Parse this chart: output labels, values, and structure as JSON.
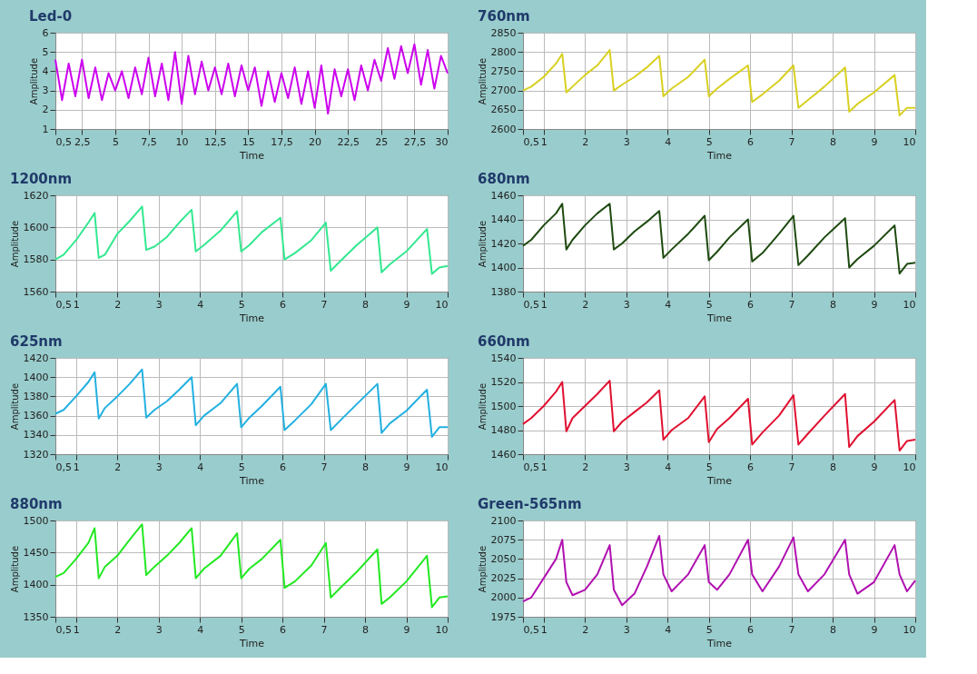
{
  "chart_data": [
    {
      "type": "line",
      "title": "Led-0",
      "xlabel": "Time",
      "ylabel": "Amplitude",
      "grid": true,
      "xlim": [
        0.5,
        30
      ],
      "ylim": [
        1,
        6
      ],
      "yticks": [
        1,
        2,
        3,
        4,
        5,
        6
      ],
      "xticks": [
        {
          "value": 0.5,
          "label": "0,5"
        },
        {
          "value": 2.5,
          "label": "2,5"
        },
        5,
        {
          "value": 7.5,
          "label": "7,5"
        },
        10,
        {
          "value": 12.5,
          "label": "12,5"
        },
        15,
        {
          "value": 17.5,
          "label": "17,5"
        },
        20,
        {
          "value": 22.5,
          "label": "22,5"
        },
        25,
        {
          "value": 27.5,
          "label": "27,5"
        },
        30
      ],
      "x": [
        0.5,
        1,
        1.5,
        2,
        2.5,
        3,
        3.5,
        4,
        4.5,
        5,
        5.5,
        6,
        6.5,
        7,
        7.5,
        8,
        8.5,
        9,
        9.5,
        10,
        10.5,
        11,
        11.5,
        12,
        12.5,
        13,
        13.5,
        14,
        14.5,
        15,
        15.5,
        16,
        16.5,
        17,
        17.5,
        18,
        18.5,
        19,
        19.5,
        20,
        20.5,
        21,
        21.5,
        22,
        22.5,
        23,
        23.5,
        24,
        24.5,
        25,
        25.5,
        26,
        26.5,
        27,
        27.5,
        28,
        28.5,
        29,
        29.5,
        30
      ],
      "series": [
        {
          "color": "#cc00ee",
          "values": [
            4.6,
            2.5,
            4.4,
            2.7,
            4.6,
            2.6,
            4.2,
            2.5,
            3.9,
            3.0,
            4.0,
            2.6,
            4.2,
            2.8,
            4.7,
            2.7,
            4.4,
            2.5,
            5.0,
            2.3,
            4.8,
            2.8,
            4.5,
            3.0,
            4.2,
            2.8,
            4.4,
            2.7,
            4.3,
            3.0,
            4.2,
            2.2,
            4.0,
            2.4,
            3.9,
            2.6,
            4.2,
            2.3,
            4.0,
            2.1,
            4.3,
            1.8,
            4.1,
            2.7,
            4.1,
            2.5,
            4.3,
            3.0,
            4.6,
            3.5,
            5.2,
            3.6,
            5.3,
            3.9,
            5.4,
            3.3,
            5.1,
            3.1,
            4.8,
            3.9
          ]
        }
      ]
    },
    {
      "type": "line",
      "title": "760nm",
      "xlabel": "Time",
      "ylabel": "Amplitude",
      "grid": true,
      "xlim": [
        0.5,
        10
      ],
      "ylim": [
        2600,
        2850
      ],
      "yticks": [
        2600,
        2650,
        2700,
        2750,
        2800,
        2850
      ],
      "xticks": [
        {
          "value": 0.5,
          "label": "0,5"
        },
        1,
        2,
        3,
        4,
        5,
        6,
        7,
        8,
        9,
        10
      ],
      "x": [
        0.5,
        0.7,
        1.0,
        1.3,
        1.45,
        1.55,
        1.7,
        2.0,
        2.3,
        2.6,
        2.7,
        2.9,
        3.2,
        3.5,
        3.8,
        3.9,
        4.1,
        4.5,
        4.9,
        5.0,
        5.2,
        5.5,
        5.95,
        6.05,
        6.3,
        6.7,
        7.05,
        7.17,
        7.4,
        7.8,
        8.3,
        8.4,
        8.6,
        9.0,
        9.5,
        9.62,
        9.8,
        10.0
      ],
      "series": [
        {
          "color": "#d8d020",
          "values": [
            2700,
            2710,
            2735,
            2770,
            2795,
            2695,
            2710,
            2740,
            2765,
            2805,
            2700,
            2715,
            2735,
            2760,
            2790,
            2685,
            2705,
            2735,
            2780,
            2685,
            2705,
            2730,
            2765,
            2670,
            2690,
            2725,
            2765,
            2655,
            2675,
            2710,
            2760,
            2645,
            2665,
            2695,
            2740,
            2635,
            2655,
            2655
          ]
        }
      ]
    },
    {
      "type": "line",
      "title": "1200nm",
      "xlabel": "Time",
      "ylabel": "Amplitude",
      "grid": true,
      "xlim": [
        0.5,
        10
      ],
      "ylim": [
        1560,
        1620
      ],
      "yticks": [
        1560,
        1580,
        1600,
        1620
      ],
      "xticks": [
        {
          "value": 0.5,
          "label": "0,5"
        },
        1,
        2,
        3,
        4,
        5,
        6,
        7,
        8,
        9,
        10
      ],
      "x": [
        0.5,
        0.7,
        1.0,
        1.3,
        1.45,
        1.55,
        1.7,
        2.0,
        2.3,
        2.6,
        2.7,
        2.9,
        3.2,
        3.5,
        3.8,
        3.9,
        4.1,
        4.5,
        4.9,
        5.0,
        5.2,
        5.5,
        5.95,
        6.05,
        6.3,
        6.7,
        7.05,
        7.17,
        7.4,
        7.8,
        8.3,
        8.4,
        8.6,
        9.0,
        9.5,
        9.62,
        9.8,
        10.0
      ],
      "series": [
        {
          "color": "#33e890",
          "values": [
            1580,
            1583,
            1592,
            1603,
            1609,
            1581,
            1583,
            1596,
            1604,
            1613,
            1586,
            1588,
            1594,
            1603,
            1611,
            1585,
            1589,
            1598,
            1610,
            1585,
            1589,
            1597,
            1606,
            1580,
            1584,
            1592,
            1603,
            1573,
            1579,
            1589,
            1600,
            1572,
            1577,
            1585,
            1599,
            1571,
            1575,
            1576
          ]
        }
      ]
    },
    {
      "type": "line",
      "title": "680nm",
      "xlabel": "Time",
      "ylabel": "Amplitude",
      "grid": true,
      "xlim": [
        0.5,
        10
      ],
      "ylim": [
        1380,
        1460
      ],
      "yticks": [
        1380,
        1400,
        1420,
        1440,
        1460
      ],
      "xticks": [
        {
          "value": 0.5,
          "label": "0,5"
        },
        1,
        2,
        3,
        4,
        5,
        6,
        7,
        8,
        9,
        10
      ],
      "x": [
        0.5,
        0.7,
        1.0,
        1.3,
        1.45,
        1.55,
        1.7,
        2.0,
        2.3,
        2.6,
        2.7,
        2.9,
        3.2,
        3.5,
        3.8,
        3.9,
        4.1,
        4.5,
        4.9,
        5.0,
        5.2,
        5.5,
        5.95,
        6.05,
        6.3,
        6.7,
        7.05,
        7.17,
        7.4,
        7.8,
        8.3,
        8.4,
        8.6,
        9.0,
        9.5,
        9.62,
        9.8,
        10.0
      ],
      "series": [
        {
          "color": "#1e4a10",
          "values": [
            1418,
            1423,
            1435,
            1445,
            1453,
            1415,
            1423,
            1435,
            1445,
            1453,
            1415,
            1420,
            1430,
            1438,
            1447,
            1408,
            1415,
            1428,
            1443,
            1406,
            1413,
            1425,
            1440,
            1405,
            1412,
            1428,
            1443,
            1402,
            1410,
            1425,
            1441,
            1400,
            1407,
            1418,
            1435,
            1395,
            1403,
            1404
          ]
        }
      ]
    },
    {
      "type": "line",
      "title": "625nm",
      "xlabel": "Time",
      "ylabel": "Amplitude",
      "grid": true,
      "xlim": [
        0.5,
        10
      ],
      "ylim": [
        1320,
        1420
      ],
      "yticks": [
        1320,
        1340,
        1360,
        1380,
        1400,
        1420
      ],
      "xticks": [
        {
          "value": 0.5,
          "label": "0,5"
        },
        1,
        2,
        3,
        4,
        5,
        6,
        7,
        8,
        9,
        10
      ],
      "x": [
        0.5,
        0.7,
        1.0,
        1.3,
        1.45,
        1.55,
        1.7,
        2.0,
        2.3,
        2.6,
        2.7,
        2.9,
        3.2,
        3.5,
        3.8,
        3.9,
        4.1,
        4.5,
        4.9,
        5.0,
        5.2,
        5.5,
        5.95,
        6.05,
        6.3,
        6.7,
        7.05,
        7.17,
        7.4,
        7.8,
        8.3,
        8.4,
        8.6,
        9.0,
        9.5,
        9.62,
        9.8,
        10.0
      ],
      "series": [
        {
          "color": "#22b0e0",
          "values": [
            1362,
            1366,
            1380,
            1395,
            1405,
            1357,
            1368,
            1380,
            1393,
            1408,
            1358,
            1366,
            1375,
            1387,
            1400,
            1350,
            1360,
            1373,
            1393,
            1348,
            1358,
            1370,
            1390,
            1345,
            1355,
            1372,
            1393,
            1345,
            1355,
            1372,
            1393,
            1342,
            1352,
            1365,
            1387,
            1338,
            1348,
            1348
          ]
        }
      ]
    },
    {
      "type": "line",
      "title": "660nm",
      "xlabel": "Time",
      "ylabel": "Amplitude",
      "grid": true,
      "xlim": [
        0.5,
        10
      ],
      "ylim": [
        1460,
        1540
      ],
      "yticks": [
        1460,
        1480,
        1500,
        1520,
        1540
      ],
      "xticks": [
        {
          "value": 0.5,
          "label": "0,5"
        },
        1,
        2,
        3,
        4,
        5,
        6,
        7,
        8,
        9,
        10
      ],
      "x": [
        0.5,
        0.7,
        1.0,
        1.3,
        1.45,
        1.55,
        1.7,
        2.0,
        2.3,
        2.6,
        2.7,
        2.9,
        3.2,
        3.5,
        3.8,
        3.9,
        4.1,
        4.5,
        4.9,
        5.0,
        5.2,
        5.5,
        5.95,
        6.05,
        6.3,
        6.7,
        7.05,
        7.17,
        7.4,
        7.8,
        8.3,
        8.4,
        8.6,
        9.0,
        9.5,
        9.62,
        9.8,
        10.0
      ],
      "series": [
        {
          "color": "#e01030",
          "values": [
            1485,
            1490,
            1500,
            1512,
            1520,
            1479,
            1490,
            1500,
            1510,
            1521,
            1479,
            1487,
            1495,
            1503,
            1513,
            1472,
            1480,
            1490,
            1508,
            1470,
            1481,
            1490,
            1506,
            1468,
            1478,
            1492,
            1509,
            1468,
            1477,
            1492,
            1510,
            1466,
            1475,
            1487,
            1505,
            1463,
            1471,
            1472
          ]
        }
      ]
    },
    {
      "type": "line",
      "title": "880nm",
      "xlabel": "Time",
      "ylabel": "Amplitude",
      "grid": true,
      "xlim": [
        0.5,
        10
      ],
      "ylim": [
        1350,
        1500
      ],
      "yticks": [
        1350,
        1400,
        1450,
        1500
      ],
      "xticks": [
        {
          "value": 0.5,
          "label": "0,5"
        },
        1,
        2,
        3,
        4,
        5,
        6,
        7,
        8,
        9,
        10
      ],
      "x": [
        0.5,
        0.7,
        1.0,
        1.3,
        1.45,
        1.55,
        1.7,
        2.0,
        2.3,
        2.6,
        2.7,
        2.9,
        3.2,
        3.5,
        3.8,
        3.9,
        4.1,
        4.5,
        4.9,
        5.0,
        5.2,
        5.5,
        5.95,
        6.05,
        6.3,
        6.7,
        7.05,
        7.17,
        7.4,
        7.8,
        8.3,
        8.4,
        8.6,
        9.0,
        9.5,
        9.62,
        9.8,
        10.0
      ],
      "series": [
        {
          "color": "#22e822",
          "values": [
            1412,
            1418,
            1440,
            1465,
            1488,
            1410,
            1428,
            1445,
            1470,
            1494,
            1415,
            1428,
            1445,
            1465,
            1488,
            1410,
            1425,
            1445,
            1480,
            1410,
            1425,
            1440,
            1470,
            1395,
            1405,
            1430,
            1465,
            1380,
            1395,
            1420,
            1455,
            1370,
            1380,
            1405,
            1445,
            1365,
            1380,
            1382
          ]
        }
      ]
    },
    {
      "type": "line",
      "title": "Green-565nm",
      "xlabel": "Time",
      "ylabel": "Amplitude",
      "grid": true,
      "xlim": [
        0.5,
        10
      ],
      "ylim": [
        1975,
        2100
      ],
      "yticks": [
        1975,
        2000,
        2025,
        2050,
        2075,
        2100
      ],
      "xticks": [
        {
          "value": 0.5,
          "label": "0,5"
        },
        1,
        2,
        3,
        4,
        5,
        6,
        7,
        8,
        9,
        10
      ],
      "x": [
        0.5,
        0.7,
        1.0,
        1.3,
        1.45,
        1.55,
        1.7,
        2.0,
        2.3,
        2.6,
        2.7,
        2.9,
        3.2,
        3.5,
        3.8,
        3.9,
        4.1,
        4.5,
        4.9,
        5.0,
        5.2,
        5.5,
        5.95,
        6.05,
        6.3,
        6.7,
        7.05,
        7.17,
        7.4,
        7.8,
        8.3,
        8.4,
        8.6,
        9.0,
        9.5,
        9.62,
        9.8,
        10.0
      ],
      "series": [
        {
          "color": "#b010b0",
          "values": [
            1995,
            2000,
            2025,
            2050,
            2075,
            2020,
            2003,
            2010,
            2030,
            2068,
            2010,
            1990,
            2005,
            2040,
            2080,
            2030,
            2008,
            2030,
            2068,
            2020,
            2010,
            2030,
            2075,
            2030,
            2008,
            2040,
            2078,
            2030,
            2008,
            2030,
            2075,
            2030,
            2005,
            2020,
            2068,
            2030,
            2008,
            2022
          ]
        }
      ]
    }
  ]
}
